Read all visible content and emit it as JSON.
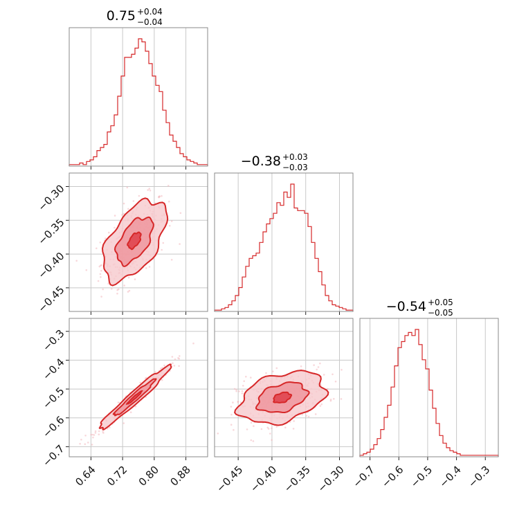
{
  "chart_data": {
    "type": "corner",
    "colors": {
      "main": "#d62728",
      "fill_outer": "#f6c9cd",
      "fill_mid": "#ee8f97",
      "fill_inner": "#e0444f",
      "points": "#f2b8be"
    },
    "grid": true,
    "params": [
      {
        "title": {
          "median": "0.75",
          "upper": "+0.04",
          "lower": "−0.04"
        },
        "range": [
          0.585,
          0.935
        ],
        "ticks": [
          0.64,
          0.72,
          0.8,
          0.88
        ],
        "tick_labels": [
          "0.64",
          "0.72",
          "0.80",
          "0.88"
        ],
        "hist": {
          "start": 0.585,
          "width": 0.00875,
          "counts": [
            1,
            1,
            1,
            2,
            1,
            3,
            4,
            6,
            10,
            12,
            14,
            22,
            26,
            33,
            45,
            58,
            70,
            70,
            72,
            76,
            82,
            80,
            74,
            66,
            58,
            52,
            48,
            36,
            28,
            20,
            16,
            12,
            8,
            6,
            4,
            3,
            2,
            1,
            1,
            1
          ]
        }
      },
      {
        "title": {
          "median": "−0.38",
          "upper": "+0.03",
          "lower": "−0.03"
        },
        "range": [
          -0.485,
          -0.28
        ],
        "ticks": [
          -0.45,
          -0.4,
          -0.35,
          -0.3
        ],
        "tick_labels": [
          "−0.45",
          "−0.40",
          "−0.35",
          "−0.30"
        ],
        "hist": {
          "start": -0.485,
          "width": 0.005125,
          "counts": [
            1,
            1,
            2,
            3,
            5,
            8,
            12,
            18,
            26,
            34,
            40,
            42,
            44,
            52,
            60,
            66,
            70,
            74,
            82,
            80,
            90,
            86,
            96,
            78,
            76,
            76,
            74,
            64,
            52,
            40,
            30,
            20,
            12,
            8,
            5,
            4,
            3,
            2,
            1,
            1
          ]
        }
      },
      {
        "title": {
          "median": "−0.54",
          "upper": "+0.05",
          "lower": "−0.05"
        },
        "range": [
          -0.735,
          -0.255
        ],
        "ticks": [
          -0.7,
          -0.6,
          -0.5,
          -0.4,
          -0.3
        ],
        "tick_labels": [
          "−0.7",
          "−0.6",
          "−0.5",
          "−0.4",
          "−0.3"
        ],
        "hist": {
          "start": -0.735,
          "width": 0.012,
          "counts": [
            1,
            2,
            3,
            5,
            8,
            12,
            18,
            26,
            34,
            46,
            60,
            72,
            76,
            80,
            82,
            80,
            84,
            74,
            64,
            58,
            44,
            32,
            22,
            14,
            9,
            6,
            4,
            3,
            2,
            1,
            1,
            1,
            1,
            1,
            1,
            1,
            1,
            1,
            1,
            1
          ]
        }
      }
    ],
    "scatter_panels": [
      {
        "x_param": 0,
        "y_param": 1,
        "center": [
          0.75,
          -0.38
        ],
        "sd": [
          0.04,
          0.03
        ],
        "corr": 0.55
      },
      {
        "x_param": 0,
        "y_param": 2,
        "center": [
          0.75,
          -0.53
        ],
        "sd": [
          0.045,
          0.055
        ],
        "corr": 0.97
      },
      {
        "x_param": 1,
        "y_param": 2,
        "center": [
          -0.385,
          -0.53
        ],
        "sd": [
          0.032,
          0.045
        ],
        "corr": 0.35
      }
    ]
  }
}
